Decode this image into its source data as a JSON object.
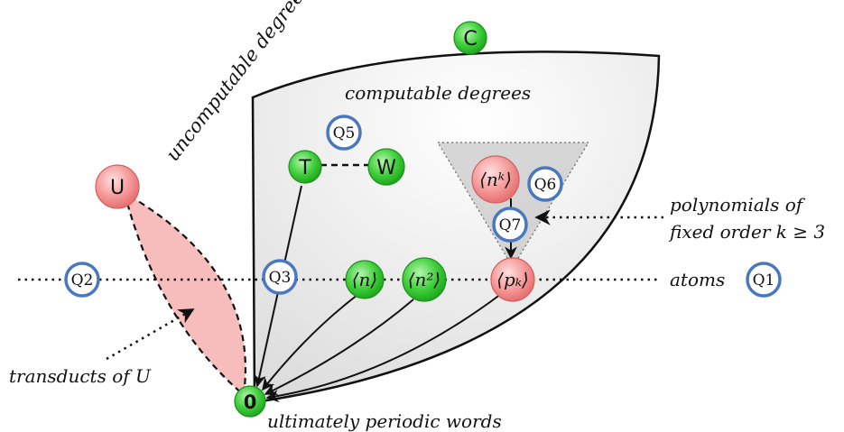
{
  "colors": {
    "green_node": "#2fbf2f",
    "red_node": "#f28b8b",
    "blue_ring": "#4a78c0",
    "region_fill": "#efefef",
    "triangle_fill": "#c8c8c8",
    "transduct_fill": "#f7bcbc"
  },
  "labels": {
    "uncomputable": "uncomputable degrees",
    "computable": "computable degrees",
    "poly_line1": "polynomials of",
    "poly_line2": "fixed order k ≥ 3",
    "atoms": "atoms",
    "transducts": "transducts of U",
    "periodic": "ultimately periodic words"
  },
  "nodes": {
    "C": "C",
    "T": "T",
    "W": "W",
    "U": "U",
    "zero": "0",
    "n": "⟨n⟩",
    "n2": "⟨n²⟩",
    "pk": "⟨pₖ⟩",
    "nk": "⟨nᵏ⟩"
  },
  "questions": {
    "Q1": "Q1",
    "Q2": "Q2",
    "Q3": "Q3",
    "Q5": "Q5",
    "Q6": "Q6",
    "Q7": "Q7"
  }
}
